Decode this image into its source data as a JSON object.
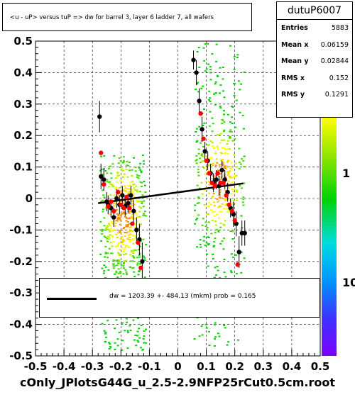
{
  "title": "<u - uP>      versus  tuP =>  dw for barrel 3, layer 6 ladder 7, all  wafers",
  "stats": {
    "name": "dutuP6007",
    "rows": [
      {
        "label": "Entries",
        "value": "5883"
      },
      {
        "label": "Mean x",
        "value": "0.06159"
      },
      {
        "label": "Mean y",
        "value": "0.02844"
      },
      {
        "label": "RMS x",
        "value": "0.152"
      },
      {
        "label": "RMS y",
        "value": "0.1291"
      }
    ]
  },
  "fit": {
    "label": "dw = 1203.39 +- 484.13 (mkm) prob = 0.165"
  },
  "footer": "cOnly_JPlotsG44G_u_2.5-2.9NFP25rCut0.5cm.root",
  "colors": {
    "black_points": "#000000",
    "red_points": "#ff0000",
    "fit_line": "#000000"
  },
  "chart_data": {
    "type": "scatter",
    "xlim": [
      -0.5,
      0.5
    ],
    "ylim": [
      -0.5,
      0.5
    ],
    "x_ticks": [
      "-0.5",
      "-0.4",
      "-0.3",
      "-0.2",
      "-0.1",
      "0",
      "0.1",
      "0.2",
      "0.3",
      "0.4",
      "0.5"
    ],
    "y_ticks": [
      "-0.5",
      "-0.4",
      "-0.3",
      "-0.2",
      "-0.1",
      "0",
      "0.1",
      "0.2",
      "0.3",
      "0.4",
      "0.5"
    ],
    "z_ticks": [
      "1",
      "10"
    ],
    "grid": true,
    "clusters": [
      {
        "xmin": -0.275,
        "xmax": -0.115,
        "ymin": -0.48,
        "ymax": 0.14
      },
      {
        "xmin": 0.055,
        "xmax": 0.23,
        "ymin": -0.47,
        "ymax": 0.5
      }
    ],
    "fit_line": {
      "x": [
        -0.28,
        0.23
      ],
      "y": [
        -0.015,
        0.048
      ]
    },
    "black_series": [
      {
        "x": -0.275,
        "y": 0.26,
        "err": 0.05
      },
      {
        "x": -0.27,
        "y": 0.07,
        "err": 0.04
      },
      {
        "x": -0.26,
        "y": 0.06,
        "err": 0.035
      },
      {
        "x": -0.25,
        "y": -0.01,
        "err": 0.03
      },
      {
        "x": -0.245,
        "y": -0.02,
        "err": 0.03
      },
      {
        "x": -0.235,
        "y": -0.03,
        "err": 0.03
      },
      {
        "x": -0.225,
        "y": -0.06,
        "err": 0.03
      },
      {
        "x": -0.215,
        "y": 0.0,
        "err": 0.03
      },
      {
        "x": -0.205,
        "y": -0.02,
        "err": 0.03
      },
      {
        "x": -0.195,
        "y": 0.01,
        "err": 0.03
      },
      {
        "x": -0.185,
        "y": -0.025,
        "err": 0.03
      },
      {
        "x": -0.175,
        "y": -0.015,
        "err": 0.03
      },
      {
        "x": -0.165,
        "y": 0.01,
        "err": 0.03
      },
      {
        "x": -0.155,
        "y": -0.04,
        "err": 0.035
      },
      {
        "x": -0.145,
        "y": -0.1,
        "err": 0.04
      },
      {
        "x": -0.135,
        "y": -0.13,
        "err": 0.05
      },
      {
        "x": -0.125,
        "y": -0.2,
        "err": 0.06
      },
      {
        "x": 0.055,
        "y": 0.44,
        "err": 0.03
      },
      {
        "x": 0.065,
        "y": 0.4,
        "err": 0.04
      },
      {
        "x": 0.075,
        "y": 0.31,
        "err": 0.04
      },
      {
        "x": 0.085,
        "y": 0.22,
        "err": 0.04
      },
      {
        "x": 0.095,
        "y": 0.15,
        "err": 0.03
      },
      {
        "x": 0.105,
        "y": 0.12,
        "err": 0.03
      },
      {
        "x": 0.115,
        "y": 0.08,
        "err": 0.03
      },
      {
        "x": 0.125,
        "y": 0.05,
        "err": 0.03
      },
      {
        "x": 0.135,
        "y": 0.06,
        "err": 0.03
      },
      {
        "x": 0.145,
        "y": 0.04,
        "err": 0.03
      },
      {
        "x": 0.155,
        "y": 0.09,
        "err": 0.03
      },
      {
        "x": 0.165,
        "y": 0.06,
        "err": 0.03
      },
      {
        "x": 0.175,
        "y": 0.02,
        "err": 0.03
      },
      {
        "x": 0.185,
        "y": -0.03,
        "err": 0.03
      },
      {
        "x": 0.195,
        "y": -0.05,
        "err": 0.04
      },
      {
        "x": 0.205,
        "y": -0.08,
        "err": 0.04
      },
      {
        "x": 0.215,
        "y": -0.17,
        "err": 0.05
      },
      {
        "x": 0.225,
        "y": -0.11,
        "err": 0.04
      },
      {
        "x": 0.235,
        "y": -0.11,
        "err": 0.04
      }
    ],
    "red_series": [
      {
        "x": -0.27,
        "y": 0.145
      },
      {
        "x": -0.26,
        "y": 0.045
      },
      {
        "x": -0.245,
        "y": -0.025
      },
      {
        "x": -0.235,
        "y": -0.01
      },
      {
        "x": -0.225,
        "y": -0.04
      },
      {
        "x": -0.21,
        "y": 0.02
      },
      {
        "x": -0.2,
        "y": -0.02
      },
      {
        "x": -0.19,
        "y": -0.03
      },
      {
        "x": -0.18,
        "y": 0.005
      },
      {
        "x": -0.17,
        "y": -0.03
      },
      {
        "x": -0.16,
        "y": -0.08
      },
      {
        "x": -0.14,
        "y": -0.14
      },
      {
        "x": -0.13,
        "y": -0.22
      },
      {
        "x": 0.08,
        "y": 0.27
      },
      {
        "x": 0.09,
        "y": 0.19
      },
      {
        "x": 0.1,
        "y": 0.12
      },
      {
        "x": 0.11,
        "y": 0.08
      },
      {
        "x": 0.12,
        "y": 0.05
      },
      {
        "x": 0.13,
        "y": 0.04
      },
      {
        "x": 0.14,
        "y": 0.08
      },
      {
        "x": 0.15,
        "y": 0.05
      },
      {
        "x": 0.16,
        "y": 0.05
      },
      {
        "x": 0.17,
        "y": 0.01
      },
      {
        "x": 0.18,
        "y": -0.02
      },
      {
        "x": 0.19,
        "y": -0.04
      },
      {
        "x": 0.2,
        "y": -0.07
      },
      {
        "x": 0.21,
        "y": -0.21
      }
    ]
  }
}
